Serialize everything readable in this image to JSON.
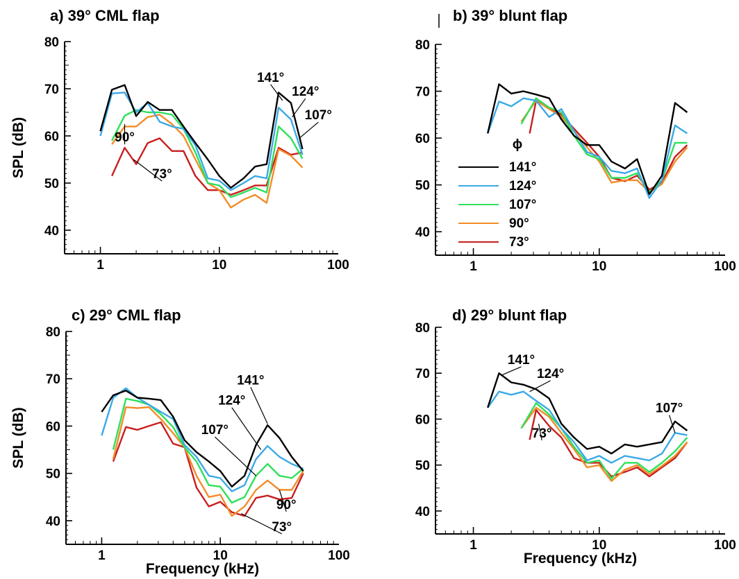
{
  "colors": {
    "141": "#000000",
    "124": "#3aa9e6",
    "107": "#2ee05a",
    "90": "#f28c28",
    "73": "#c81e1e",
    "axis": "#000000"
  },
  "legend_title": "ϕ",
  "chart_data": [
    {
      "id": "a",
      "type": "line",
      "title": "a) 39° CML flap",
      "xlabel": "",
      "ylabel": "SPL (dB)",
      "xscale": "log",
      "xlim": [
        0.5,
        100
      ],
      "ylim": [
        35,
        80
      ],
      "xticks": [
        "1",
        "10",
        "100"
      ],
      "yticks": [
        "40",
        "50",
        "60",
        "70",
        "80"
      ],
      "series": [
        {
          "name": "141°",
          "x": [
            1,
            1.25,
            1.6,
            2,
            2.5,
            3.15,
            4,
            5,
            6.3,
            8,
            10,
            12.5,
            16,
            20,
            25,
            31.5,
            40,
            50
          ],
          "y": [
            61,
            69.8,
            70.8,
            64.2,
            67.2,
            65.5,
            65.5,
            62,
            58.5,
            55,
            51.5,
            49,
            51,
            53.5,
            54,
            69.2,
            67,
            57.2
          ]
        },
        {
          "name": "124°",
          "x": [
            1,
            1.25,
            1.6,
            2,
            2.5,
            3.15,
            4,
            5,
            6.3,
            8,
            10,
            12.5,
            16,
            20,
            25,
            31.5,
            40,
            50
          ],
          "y": [
            60,
            69,
            69.2,
            65,
            67,
            63,
            62,
            61.5,
            58,
            51,
            50.5,
            48.5,
            50,
            51.5,
            51,
            66,
            63.5,
            56
          ]
        },
        {
          "name": "107°",
          "x": [
            1.25,
            1.6,
            2,
            2.5,
            3.15,
            4,
            5,
            6.3,
            8,
            10,
            12.5,
            16,
            20,
            25,
            31.5,
            40,
            50
          ],
          "y": [
            59,
            64.3,
            65.5,
            65,
            65,
            64.5,
            61.5,
            56.5,
            50,
            49.5,
            47,
            48,
            49,
            48,
            62,
            59.5,
            55.2
          ]
        },
        {
          "name": "90°",
          "x": [
            1.25,
            1.6,
            2,
            2.5,
            3.15,
            4,
            5,
            6.3,
            8,
            10,
            12.5,
            16,
            20,
            25,
            31.5,
            40,
            50
          ],
          "y": [
            58.2,
            62,
            62,
            64,
            64.5,
            62.5,
            60,
            55,
            50,
            48.5,
            44.8,
            46.5,
            47.5,
            45.8,
            57.2,
            55.8,
            53.3
          ]
        },
        {
          "name": "73°",
          "x": [
            1.25,
            1.6,
            2,
            2.5,
            3.15,
            4,
            5,
            6.3,
            8,
            10,
            12.5,
            16,
            20,
            25,
            31.5,
            40,
            50
          ],
          "y": [
            51.5,
            57.5,
            54,
            58.5,
            59.5,
            56.8,
            56.8,
            51.5,
            48.5,
            48.5,
            47.5,
            48.5,
            49.5,
            49.5,
            57.5,
            56,
            56.5
          ]
        }
      ],
      "annotations": [
        {
          "text": "141°",
          "x": 27,
          "y": 71.5,
          "tx": 34,
          "ty": 67.5
        },
        {
          "text": "124°",
          "x": 53,
          "y": 68.5,
          "tx": 41,
          "ty": 64
        },
        {
          "text": "107°",
          "x": 68,
          "y": 63.5,
          "tx": 47,
          "ty": 59.5
        },
        {
          "text": "90°",
          "x": 1.6,
          "y": 58.8,
          "tx": 1.6,
          "ty": 62.5
        },
        {
          "text": "73°",
          "x": 3.3,
          "y": 51,
          "tx": 1.9,
          "ty": 55
        }
      ]
    },
    {
      "id": "b",
      "type": "line",
      "title": "b) 39° blunt flap",
      "xlabel": "",
      "ylabel": "",
      "xscale": "log",
      "xlim": [
        0.5,
        100
      ],
      "ylim": [
        35,
        80
      ],
      "xticks": [
        "1",
        "10",
        "100"
      ],
      "yticks": [
        "40",
        "50",
        "60",
        "70",
        "80"
      ],
      "legend": "left",
      "series": [
        {
          "name": "141°",
          "x": [
            1.3,
            1.6,
            2,
            2.5,
            3.15,
            4,
            5,
            6.3,
            8,
            10,
            12.5,
            16,
            20,
            25,
            31.5,
            40,
            50
          ],
          "y": [
            61,
            71.5,
            69.5,
            70,
            69.3,
            68.5,
            64,
            60.5,
            58.5,
            58.5,
            55,
            53.5,
            55.5,
            48,
            52,
            67.5,
            65.5
          ]
        },
        {
          "name": "124°",
          "x": [
            1.3,
            1.6,
            2,
            2.5,
            3.15,
            4,
            5,
            6.3,
            8,
            10,
            12.5,
            16,
            20,
            25,
            31.5,
            40,
            50
          ],
          "y": [
            61,
            67.8,
            66.8,
            68.5,
            68,
            64.5,
            66.2,
            61.5,
            57,
            56,
            53,
            52.5,
            53.5,
            47.2,
            51,
            62.7,
            61
          ]
        },
        {
          "name": "107°",
          "x": [
            2.4,
            3.15,
            4,
            5,
            6.3,
            8,
            10,
            12.5,
            16,
            20,
            25,
            31.5,
            40,
            50
          ],
          "y": [
            63,
            68.5,
            66.5,
            65.5,
            60.5,
            56.5,
            55.5,
            51.5,
            51.5,
            52.5,
            48.5,
            51,
            59,
            59
          ]
        },
        {
          "name": "90°",
          "x": [
            2.4,
            3.15,
            4,
            5,
            6.3,
            8,
            10,
            12.5,
            16,
            20,
            25,
            31.5,
            40,
            50
          ],
          "y": [
            63.5,
            68,
            66.2,
            64.5,
            61.5,
            58,
            55,
            50.5,
            51,
            51,
            48.5,
            50.2,
            55,
            58
          ]
        },
        {
          "name": "73°",
          "x": [
            2.8,
            3.15,
            4,
            5,
            6.3,
            8,
            10,
            12.5,
            16,
            20,
            25,
            31.5,
            40,
            50
          ],
          "y": [
            61,
            68,
            66.5,
            65,
            62,
            59,
            56,
            51.5,
            50.8,
            52,
            49,
            50.5,
            56,
            58.5
          ]
        }
      ]
    },
    {
      "id": "c",
      "type": "line",
      "title": "c) 29° CML flap",
      "xlabel": "Frequency (kHz)",
      "ylabel": "SPL (dB)",
      "xscale": "log",
      "xlim": [
        0.5,
        100
      ],
      "ylim": [
        35,
        80
      ],
      "xticks": [
        "1",
        "10",
        "100"
      ],
      "yticks": [
        "40",
        "50",
        "60",
        "70",
        "80"
      ],
      "series": [
        {
          "name": "141°",
          "x": [
            1,
            1.25,
            1.6,
            2,
            2.5,
            3.15,
            4,
            5,
            6.3,
            8,
            10,
            12.5,
            16,
            20,
            25,
            31.5,
            40,
            50
          ],
          "y": [
            63,
            66.5,
            67.5,
            66,
            65.8,
            65.5,
            62,
            57,
            54.5,
            52.5,
            50.5,
            47.2,
            49.5,
            56,
            60.2,
            57.5,
            53.5,
            50.5
          ]
        },
        {
          "name": "124°",
          "x": [
            1,
            1.25,
            1.6,
            2,
            2.5,
            3.15,
            4,
            5,
            6.3,
            8,
            10,
            12.5,
            16,
            20,
            25,
            31.5,
            40,
            50
          ],
          "y": [
            58,
            66,
            68,
            66,
            64.5,
            63,
            61.5,
            56,
            53.5,
            49.5,
            49,
            46.2,
            47.5,
            53,
            55.8,
            53.5,
            52,
            51
          ]
        },
        {
          "name": "107°",
          "x": [
            1.25,
            1.6,
            2,
            2.5,
            3.15,
            4,
            5,
            6.3,
            8,
            10,
            12.5,
            16,
            20,
            25,
            31.5,
            40,
            50
          ],
          "y": [
            55,
            65.8,
            65.3,
            64.5,
            62.5,
            59.8,
            55.5,
            52.5,
            47.5,
            47.2,
            43.8,
            45,
            49.5,
            52,
            49.5,
            49,
            51
          ]
        },
        {
          "name": "90°",
          "x": [
            1.25,
            1.6,
            2,
            2.5,
            3.15,
            4,
            5,
            6.3,
            8,
            10,
            12.5,
            16,
            20,
            25,
            31.5,
            40,
            50
          ],
          "y": [
            53,
            64,
            63.8,
            64,
            61.5,
            58.5,
            55.5,
            49.5,
            45,
            45.5,
            41,
            43,
            46.5,
            48.5,
            46.5,
            46.5,
            50.5
          ]
        },
        {
          "name": "73°",
          "x": [
            1.25,
            1.6,
            2,
            2.5,
            3.15,
            4,
            5,
            6.3,
            8,
            10,
            12.5,
            16,
            20,
            25,
            31.5,
            40,
            50
          ],
          "y": [
            52.5,
            59.8,
            59.2,
            60,
            60.8,
            56.3,
            55.5,
            47,
            43,
            44,
            41.8,
            41,
            44.8,
            45.3,
            44.5,
            44.8,
            50
          ]
        }
      ],
      "annotations": [
        {
          "text": "141°",
          "x": 18,
          "y": 68.8,
          "tx": 25,
          "ty": 60.5
        },
        {
          "text": "124°",
          "x": 12.5,
          "y": 64.5,
          "tx": 22,
          "ty": 55
        },
        {
          "text": "107°",
          "x": 9,
          "y": 58.3,
          "tx": 20,
          "ty": 49.5
        },
        {
          "text": "90°",
          "x": 36,
          "y": 42.5,
          "tx": 31.5,
          "ty": 46.5
        },
        {
          "text": "73°",
          "x": 33,
          "y": 37.8,
          "tx": 15,
          "ty": 41.5
        }
      ]
    },
    {
      "id": "d",
      "type": "line",
      "title": "d) 29° blunt flap",
      "xlabel": "Frequency (kHz)",
      "ylabel": "",
      "xscale": "log",
      "xlim": [
        0.5,
        100
      ],
      "ylim": [
        35,
        80
      ],
      "xticks": [
        "1",
        "10",
        "100"
      ],
      "yticks": [
        "40",
        "50",
        "60",
        "70",
        "80"
      ],
      "series": [
        {
          "name": "141°",
          "x": [
            1.3,
            1.6,
            2,
            2.5,
            3.15,
            4,
            5,
            6.3,
            8,
            10,
            12.5,
            16,
            20,
            25,
            31.5,
            40,
            50
          ],
          "y": [
            62.5,
            70,
            68,
            67.5,
            66.5,
            64.5,
            59,
            56,
            53.5,
            54,
            52.5,
            54.5,
            54,
            54.5,
            55,
            59.5,
            57.5
          ]
        },
        {
          "name": "124°",
          "x": [
            1.3,
            1.6,
            2,
            2.5,
            3.15,
            4,
            5,
            6.3,
            8,
            10,
            12.5,
            16,
            20,
            25,
            31.5,
            40,
            50
          ],
          "y": [
            62.5,
            66,
            65.3,
            66,
            64,
            62,
            58,
            55,
            51,
            52,
            50.5,
            52,
            51.5,
            51,
            52.5,
            57,
            56.5
          ]
        },
        {
          "name": "107°",
          "x": [
            2.4,
            3.15,
            4,
            5,
            6.3,
            8,
            10,
            12.5,
            16,
            20,
            25,
            31.5,
            40,
            50
          ],
          "y": [
            58,
            63.5,
            61,
            58,
            54,
            50.5,
            51,
            47,
            50.5,
            50.5,
            48.5,
            50.5,
            53,
            56
          ]
        },
        {
          "name": "90°",
          "x": [
            2.4,
            3.15,
            4,
            5,
            6.3,
            8,
            10,
            12.5,
            16,
            20,
            25,
            31.5,
            40,
            50
          ],
          "y": [
            58,
            62.5,
            60.5,
            57,
            53.5,
            49.5,
            50,
            46.5,
            49,
            50,
            48,
            49.8,
            52,
            55
          ]
        },
        {
          "name": "73°",
          "x": [
            2.8,
            3.15,
            4,
            5,
            6.3,
            8,
            10,
            12.5,
            16,
            20,
            25,
            31.5,
            40,
            50
          ],
          "y": [
            55.5,
            62,
            58.5,
            56,
            51.5,
            50.5,
            50.5,
            47.5,
            48.5,
            49.5,
            47.5,
            49.5,
            51.5,
            55
          ]
        }
      ],
      "annotations": [
        {
          "text": "141°",
          "x": 2.4,
          "y": 72,
          "tx": 1.65,
          "ty": 69.5
        },
        {
          "text": "124°",
          "x": 4.1,
          "y": 69,
          "tx": 2.8,
          "ty": 66
        },
        {
          "text": "107°",
          "x": 36,
          "y": 61.5,
          "tx": 40,
          "ty": 57
        },
        {
          "text": "73°",
          "x": 3.5,
          "y": 56,
          "tx": 3.3,
          "ty": 59
        }
      ]
    }
  ]
}
